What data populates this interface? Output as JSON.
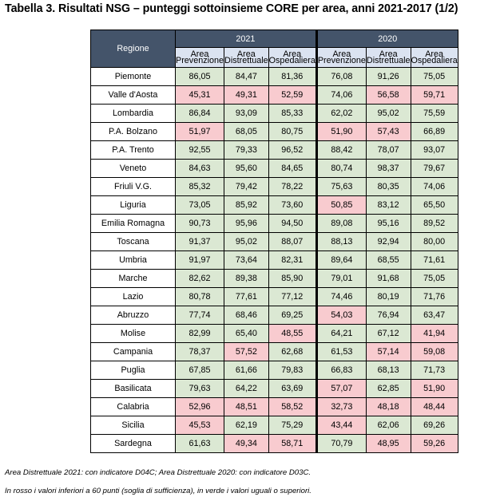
{
  "title": "Tabella 3. Risultati NSG – punteggi sottoinsieme CORE per area, anni 2021-2017 (1/2)",
  "table": {
    "region_header": "Regione",
    "years": [
      "2021",
      "2020"
    ],
    "areas": [
      [
        "Area",
        "Prevenzione"
      ],
      [
        "Area",
        "Distrettuale"
      ],
      [
        "Area",
        "Ospedaliera"
      ]
    ],
    "threshold": 60,
    "colors": {
      "below": "#f8cbcf",
      "above": "#dbe8d3",
      "header": "#44546a",
      "subheader": "#dbe3f1"
    },
    "rows": [
      {
        "region": "Piemonte",
        "values": [
          "86,05",
          "84,47",
          "81,36",
          "76,08",
          "91,26",
          "75,05"
        ]
      },
      {
        "region": "Valle d'Aosta",
        "values": [
          "45,31",
          "49,31",
          "52,59",
          "74,06",
          "56,58",
          "59,71"
        ]
      },
      {
        "region": "Lombardia",
        "values": [
          "86,84",
          "93,09",
          "85,33",
          "62,02",
          "95,02",
          "75,59"
        ]
      },
      {
        "region": "P.A. Bolzano",
        "values": [
          "51,97",
          "68,05",
          "80,75",
          "51,90",
          "57,43",
          "66,89"
        ]
      },
      {
        "region": "P.A.  Trento",
        "values": [
          "92,55",
          "79,33",
          "96,52",
          "88,42",
          "78,07",
          "93,07"
        ]
      },
      {
        "region": "Veneto",
        "values": [
          "84,63",
          "95,60",
          "84,65",
          "80,74",
          "98,37",
          "79,67"
        ]
      },
      {
        "region": "Friuli V.G.",
        "values": [
          "85,32",
          "79,42",
          "78,22",
          "75,63",
          "80,35",
          "74,06"
        ]
      },
      {
        "region": "Liguria",
        "values": [
          "73,05",
          "85,92",
          "73,60",
          "50,85",
          "83,12",
          "65,50"
        ]
      },
      {
        "region": "Emilia Romagna",
        "values": [
          "90,73",
          "95,96",
          "94,50",
          "89,08",
          "95,16",
          "89,52"
        ]
      },
      {
        "region": "Toscana",
        "values": [
          "91,37",
          "95,02",
          "88,07",
          "88,13",
          "92,94",
          "80,00"
        ]
      },
      {
        "region": "Umbria",
        "values": [
          "91,97",
          "73,64",
          "82,31",
          "89,64",
          "68,55",
          "71,61"
        ]
      },
      {
        "region": "Marche",
        "values": [
          "82,62",
          "89,38",
          "85,90",
          "79,01",
          "91,68",
          "75,05"
        ]
      },
      {
        "region": "Lazio",
        "values": [
          "80,78",
          "77,61",
          "77,12",
          "74,46",
          "80,19",
          "71,76"
        ]
      },
      {
        "region": "Abruzzo",
        "values": [
          "77,74",
          "68,46",
          "69,25",
          "54,03",
          "76,94",
          "63,47"
        ]
      },
      {
        "region": "Molise",
        "values": [
          "82,99",
          "65,40",
          "48,55",
          "64,21",
          "67,12",
          "41,94"
        ]
      },
      {
        "region": "Campania",
        "values": [
          "78,37",
          "57,52",
          "62,68",
          "61,53",
          "57,14",
          "59,08"
        ]
      },
      {
        "region": "Puglia",
        "values": [
          "67,85",
          "61,66",
          "79,83",
          "66,83",
          "68,13",
          "71,73"
        ]
      },
      {
        "region": "Basilicata",
        "values": [
          "79,63",
          "64,22",
          "63,69",
          "57,07",
          "62,85",
          "51,90"
        ]
      },
      {
        "region": "Calabria",
        "values": [
          "52,96",
          "48,51",
          "58,52",
          "32,73",
          "48,18",
          "48,44"
        ]
      },
      {
        "region": "Sicilia",
        "values": [
          "45,53",
          "62,19",
          "75,29",
          "43,44",
          "62,06",
          "69,26"
        ]
      },
      {
        "region": "Sardegna",
        "values": [
          "61,63",
          "49,34",
          "58,71",
          "70,79",
          "48,95",
          "59,26"
        ]
      }
    ]
  },
  "notes": [
    "Area Distrettuale 2021: con indicatore D04C; Area Distrettuale 2020: con indicatore D03C.",
    "In rosso i valori inferiori a 60 punti (soglia di sufficienza), in verde i valori uguali o superiori."
  ]
}
